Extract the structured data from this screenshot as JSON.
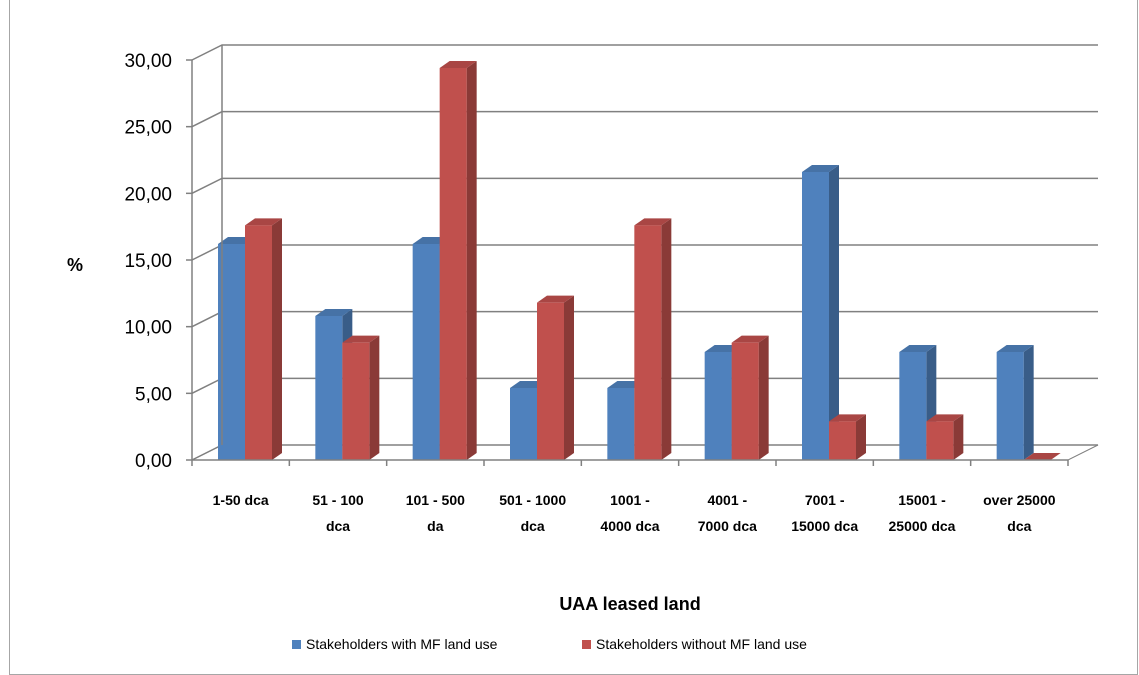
{
  "chart_data": {
    "type": "bar",
    "title": "",
    "xlabel": "UAA  leased land",
    "ylabel": "%",
    "ylim": [
      0,
      30
    ],
    "y_ticks": [
      "0,00",
      "5,00",
      "10,00",
      "15,00",
      "20,00",
      "25,00",
      "30,00"
    ],
    "categories": [
      [
        "1-50 dca"
      ],
      [
        "51 - 100",
        "dca"
      ],
      [
        "101 - 500",
        "da"
      ],
      [
        "501 - 1000",
        "dca"
      ],
      [
        "1001 -",
        "4000 dca"
      ],
      [
        "4001 -",
        "7000 dca"
      ],
      [
        "7001 -",
        "15000 dca"
      ],
      [
        "15001 -",
        "25000 dca"
      ],
      [
        "over 25000",
        "dca"
      ]
    ],
    "series": [
      {
        "name": "Stakeholders with MF land use",
        "color": "#4f81bd",
        "values": [
          16.2,
          10.8,
          16.2,
          5.4,
          5.4,
          8.1,
          21.6,
          8.1,
          8.1
        ]
      },
      {
        "name": "Stakeholders without MF land use",
        "color": "#c0504d",
        "values": [
          17.6,
          8.8,
          29.4,
          11.8,
          17.6,
          8.8,
          2.9,
          2.9,
          0.0
        ]
      }
    ],
    "grid": true,
    "legend_position": "bottom"
  }
}
